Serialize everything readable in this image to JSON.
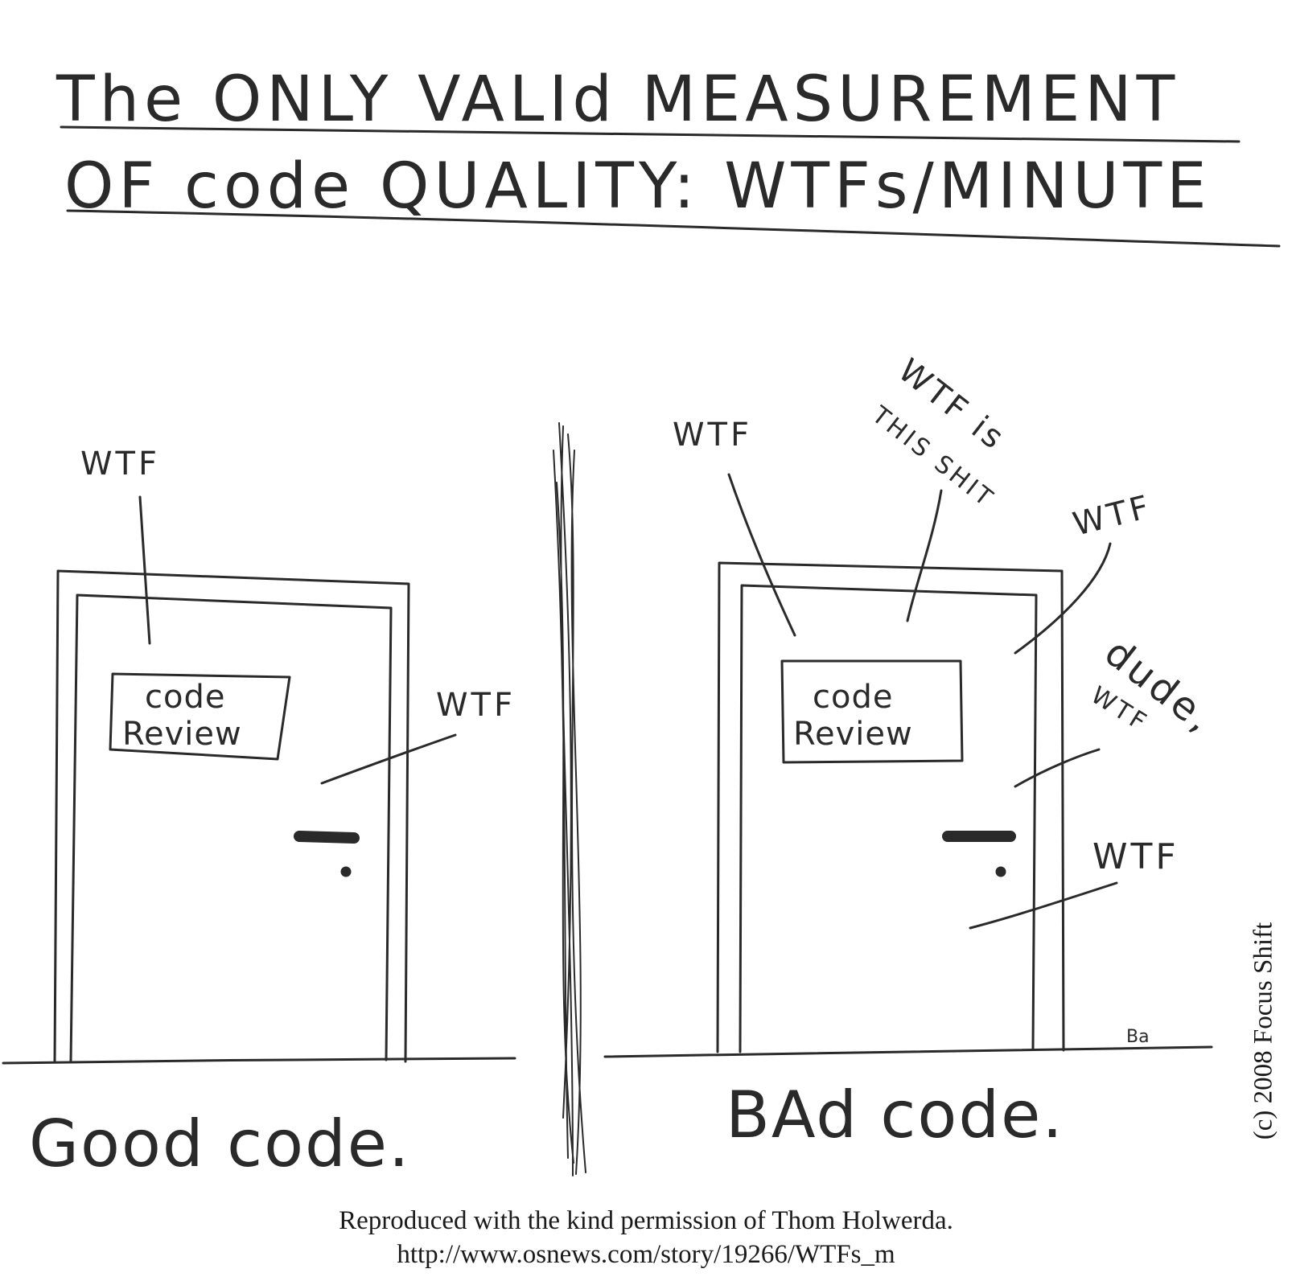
{
  "title": {
    "line1": "The ONLY VALId MEASUREMENT",
    "line2": "OF code QUALITY: WTFs/MINUTE"
  },
  "left_panel": {
    "sign_line1": "code",
    "sign_line2": "Review",
    "exclamations": [
      "WTF",
      "WTF"
    ],
    "caption": "Good code."
  },
  "right_panel": {
    "sign_line1": "code",
    "sign_line2": "Review",
    "exclamations": [
      "WTF",
      "WTF is",
      "THIS SHIT",
      "WTF",
      "dude,",
      "WTF",
      "WTF"
    ],
    "caption": "BAd code."
  },
  "artist_signature": "Ba",
  "copyright": "(c) 2008 Focus Shift",
  "credit": {
    "line1": "Reproduced with the kind permission of Thom Holwerda.",
    "line2": "http://www.osnews.com/story/19266/WTFs_m"
  }
}
